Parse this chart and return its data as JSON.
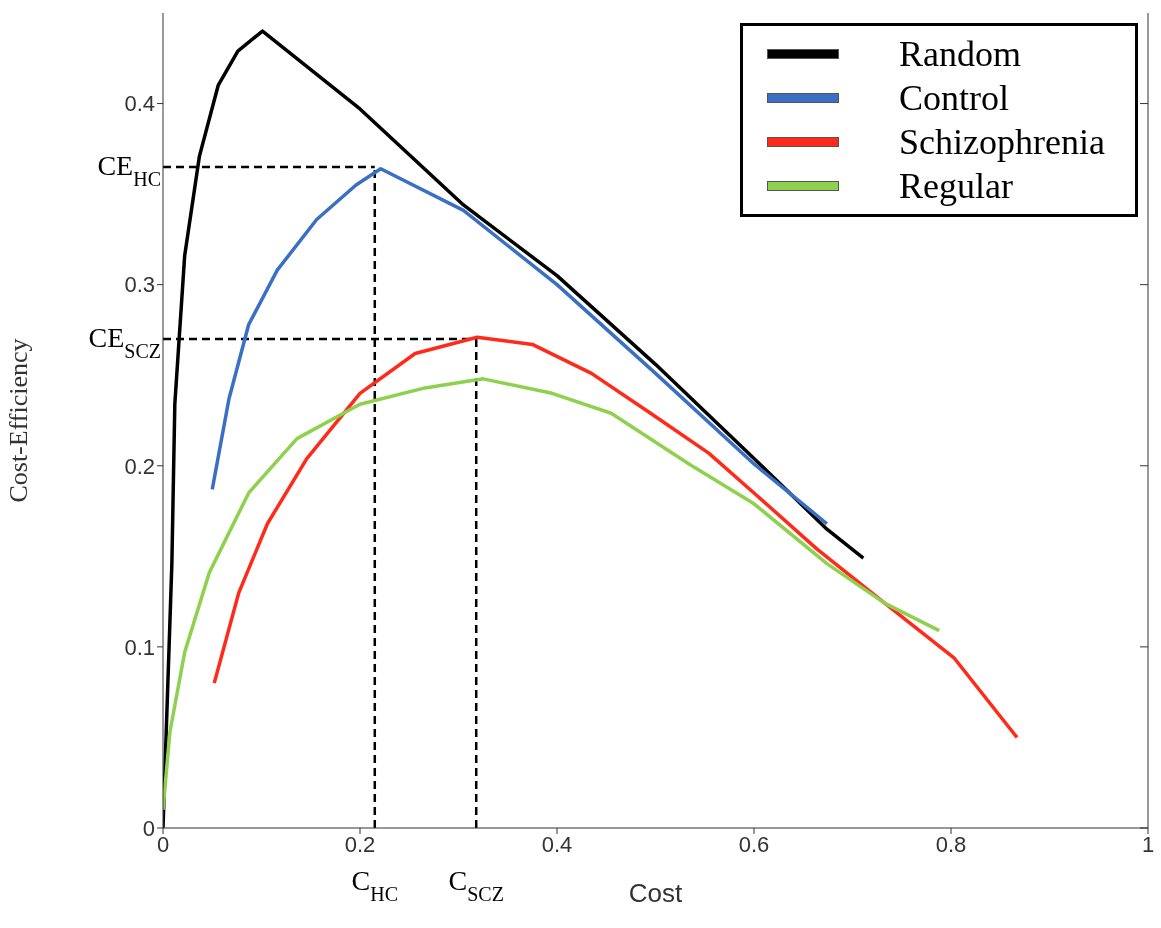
{
  "chart_data": {
    "type": "line",
    "xlabel": "Cost",
    "ylabel": "Cost-Efficiency",
    "xlim": [
      0,
      1
    ],
    "ylim": [
      0,
      0.45
    ],
    "xticks": [
      0,
      0.2,
      0.4,
      0.6,
      0.8,
      1
    ],
    "yticks": [
      0,
      0.1,
      0.2,
      0.3,
      0.4
    ],
    "legend": "top right",
    "marker": "none",
    "line_style": "solid",
    "series": [
      {
        "name": "Random",
        "color": "#000000",
        "x": [
          0,
          0.009,
          0.012,
          0.022,
          0.037,
          0.056,
          0.076,
          0.101,
          0.2,
          0.305,
          0.4,
          0.5,
          0.6,
          0.674,
          0.711
        ],
        "values": [
          0,
          0.146,
          0.234,
          0.316,
          0.371,
          0.41,
          0.429,
          0.44,
          0.397,
          0.344,
          0.305,
          0.256,
          0.204,
          0.165,
          0.149
        ]
      },
      {
        "name": "Control",
        "color": "#3a6fc4",
        "x": [
          0.05,
          0.067,
          0.087,
          0.116,
          0.156,
          0.196,
          0.221,
          0.305,
          0.4,
          0.5,
          0.6,
          0.674
        ],
        "values": [
          0.187,
          0.237,
          0.278,
          0.308,
          0.336,
          0.355,
          0.364,
          0.341,
          0.3,
          0.251,
          0.201,
          0.168
        ]
      },
      {
        "name": "Schizophrenia",
        "color": "#ff2a1a",
        "x": [
          0.052,
          0.077,
          0.106,
          0.146,
          0.2,
          0.256,
          0.319,
          0.375,
          0.435,
          0.495,
          0.554,
          0.6,
          0.664,
          0.733,
          0.803,
          0.867
        ],
        "values": [
          0.08,
          0.13,
          0.168,
          0.204,
          0.24,
          0.262,
          0.271,
          0.267,
          0.251,
          0.229,
          0.207,
          0.185,
          0.154,
          0.124,
          0.094,
          0.05
        ]
      },
      {
        "name": "Regular",
        "color": "#8fd14f",
        "x": [
          0,
          0.007,
          0.022,
          0.047,
          0.087,
          0.136,
          0.2,
          0.266,
          0.325,
          0.395,
          0.455,
          0.534,
          0.6,
          0.674,
          0.733,
          0.788
        ],
        "values": [
          0.01,
          0.053,
          0.097,
          0.141,
          0.185,
          0.215,
          0.234,
          0.243,
          0.248,
          0.24,
          0.229,
          0.201,
          0.179,
          0.146,
          0.124,
          0.109
        ]
      }
    ],
    "ref_lines": [
      {
        "axis": "x",
        "value": 0.215,
        "label": "C$_{HC}$",
        "line_style": "dashed",
        "color": "#000000"
      },
      {
        "axis": "y",
        "value": 0.365,
        "label": "CE$_{HC}$",
        "line_style": "dashed",
        "color": "#000000"
      },
      {
        "axis": "x",
        "value": 0.318,
        "label": "C$_{SCZ}$",
        "line_style": "dashed",
        "color": "#000000"
      },
      {
        "axis": "y",
        "value": 0.27,
        "label": "CE$_{SCZ}$",
        "line_style": "dashed",
        "color": "#000000"
      }
    ]
  }
}
